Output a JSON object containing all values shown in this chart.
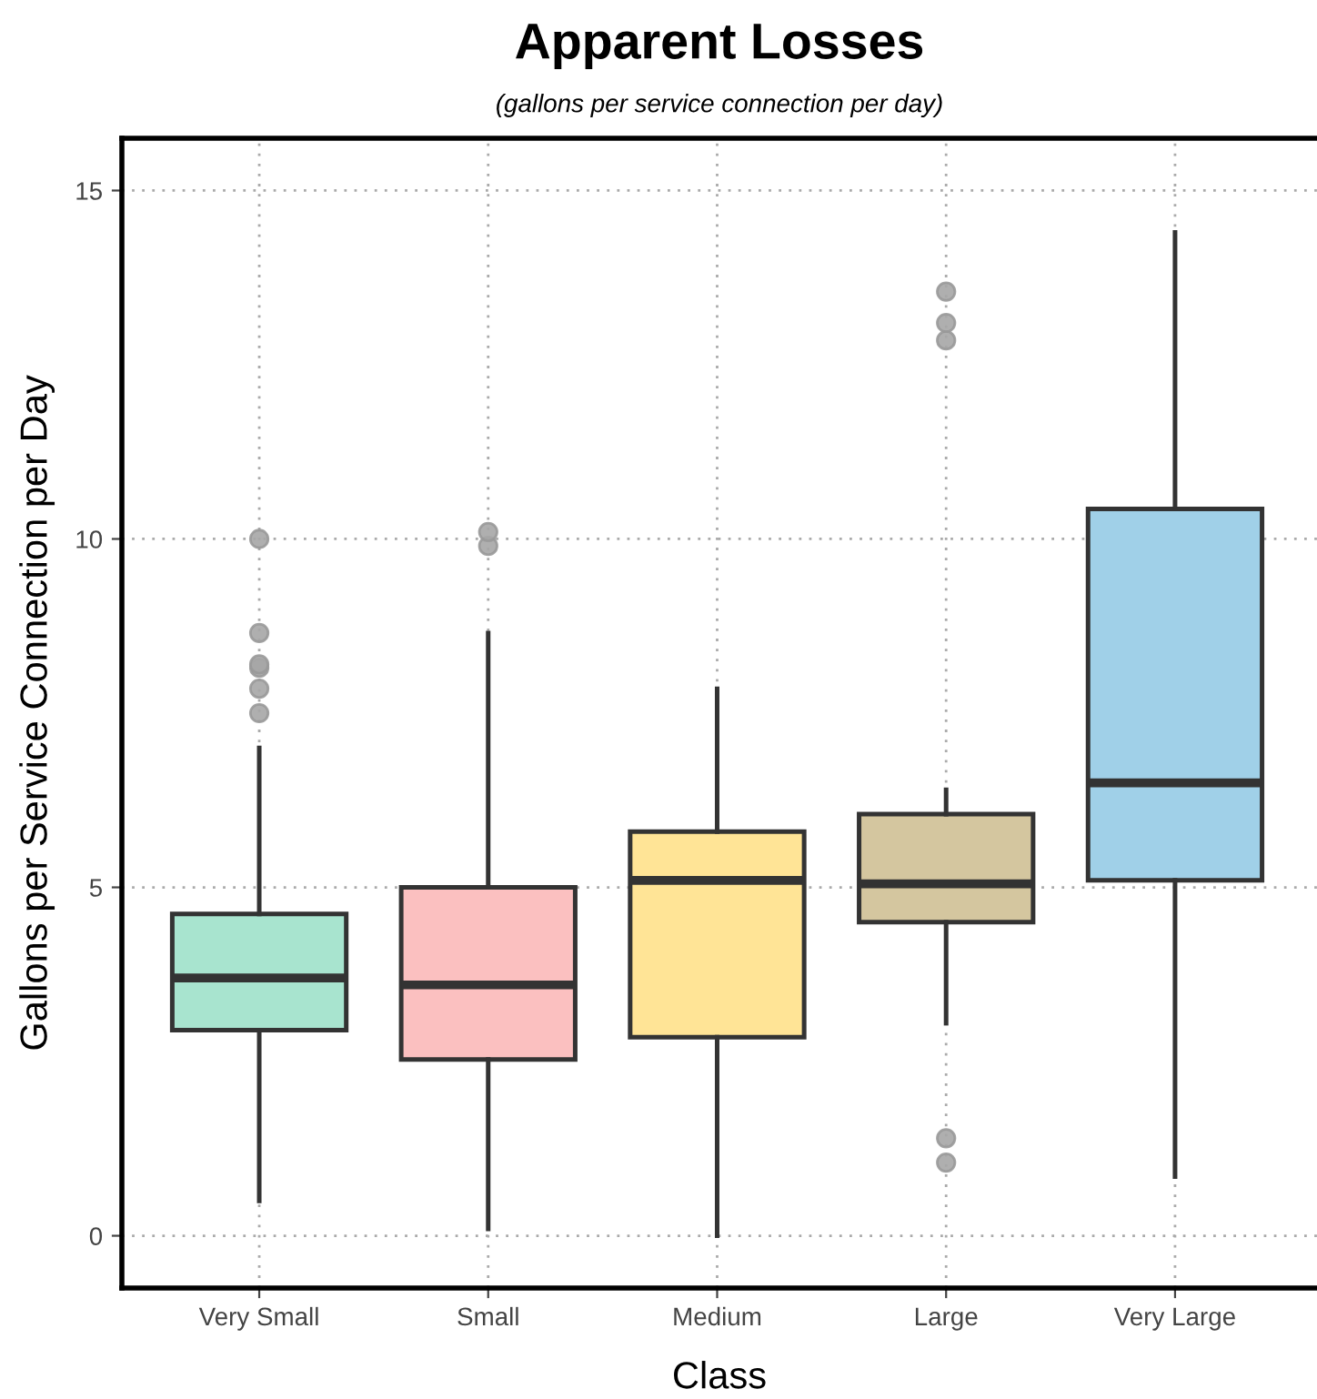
{
  "chart_data": {
    "type": "box",
    "title": "Apparent Losses",
    "subtitle": "(gallons per service connection per day)",
    "xlabel": "Class",
    "ylabel": "Gallons per Service Connection per Day",
    "categories": [
      "Very Small",
      "Small",
      "Medium",
      "Large",
      "Very Large"
    ],
    "colors": [
      "#a8e4cf",
      "#fbc0c0",
      "#ffe496",
      "#d4c69f",
      "#a0d0e8"
    ],
    "boxes": [
      {
        "low": 0.5,
        "q1": 2.95,
        "median": 3.7,
        "q3": 4.62,
        "high": 7.0,
        "outliers": [
          7.5,
          7.85,
          8.15,
          8.2,
          8.65,
          10.0
        ]
      },
      {
        "low": 0.1,
        "q1": 2.53,
        "median": 3.6,
        "q3": 5.0,
        "high": 8.65,
        "outliers": [
          9.9,
          10.1
        ]
      },
      {
        "low": 0.0,
        "q1": 2.85,
        "median": 5.1,
        "q3": 5.8,
        "high": 7.85
      },
      {
        "low": 3.05,
        "q1": 4.5,
        "median": 5.05,
        "q3": 6.05,
        "high": 6.4,
        "outliers": [
          1.05,
          1.4,
          12.85,
          13.1,
          13.55
        ]
      },
      {
        "low": 0.85,
        "q1": 5.1,
        "median": 6.5,
        "q3": 10.43,
        "high": 14.4
      }
    ],
    "ylim": [
      -0.75,
      15.75
    ],
    "yticks": [
      0,
      5,
      10,
      15
    ],
    "grid": true
  }
}
